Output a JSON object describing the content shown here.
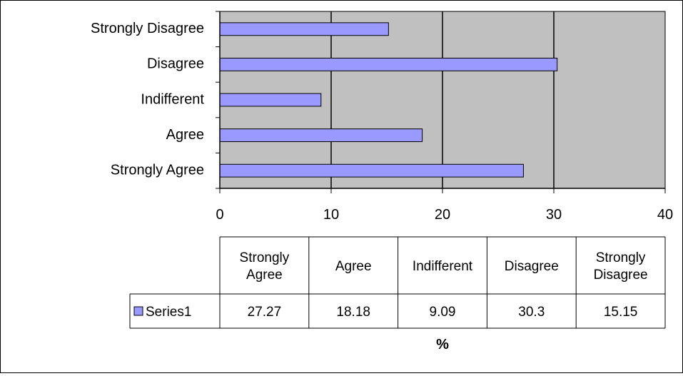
{
  "chart_data": {
    "type": "bar",
    "orientation": "horizontal",
    "categories": [
      "Strongly Agree",
      "Agree",
      "Indifferent",
      "Disagree",
      "Strongly Disagree"
    ],
    "table_headers": [
      [
        "Strongly",
        "Agree"
      ],
      [
        "Agree"
      ],
      [
        "Indifferent"
      ],
      [
        "Disagree"
      ],
      [
        "Strongly",
        "Disagree"
      ]
    ],
    "series": [
      {
        "name": "Series1",
        "values": [
          27.27,
          18.18,
          9.09,
          30.3,
          15.15
        ]
      }
    ],
    "value_labels": [
      "27.27",
      "18.18",
      "9.09",
      "30.3",
      "15.15"
    ],
    "xlabel": "%",
    "ylabel": "",
    "xlim": [
      0,
      40
    ],
    "xticks": [
      0,
      10,
      20,
      30,
      40
    ],
    "grid": "vertical major gridlines",
    "data_table": true,
    "colors": {
      "bar_fill": "#9999ff",
      "bar_stroke": "#000000",
      "plot_area": "#c0c0c0",
      "gridline": "#000000"
    }
  }
}
